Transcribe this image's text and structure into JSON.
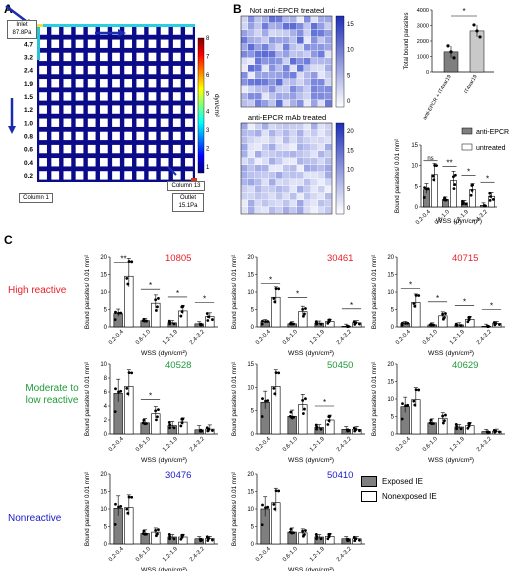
{
  "panels": {
    "a": "A",
    "b": "B",
    "c": "C"
  },
  "panel_a": {
    "inlet_label": "Inlet",
    "inlet_value": "87.8Pa",
    "outlet_label": "Outlet",
    "outlet_value": "15.1Pa",
    "column1": "Column 1",
    "column13": "Column 13",
    "row_wss": [
      "7.9",
      "4.7",
      "3.2",
      "2.4",
      "1.9",
      "1.5",
      "1.2",
      "1.0",
      "0.8",
      "0.6",
      "0.4",
      "0.2"
    ],
    "colorbar_ticks": [
      "8",
      "7",
      "6",
      "5",
      "4",
      "3",
      "2",
      "1"
    ],
    "colorbar_label": "dyn/cm²",
    "colormap": [
      "#00007f",
      "#0000ff",
      "#007fff",
      "#00ffff",
      "#7fff7f",
      "#ffff00",
      "#ff7f00",
      "#ff0000",
      "#7f0000"
    ]
  },
  "panel_b": {
    "map1_title": "Not anti-EPCR treated",
    "map1_ticks": [
      "15",
      "10",
      "5",
      "0"
    ],
    "map2_title": "anti-EPCR mAb treated",
    "map2_ticks": [
      "20",
      "15",
      "10",
      "5",
      "0"
    ],
    "map_color": "#2b3fc8"
  },
  "bar_chart": {
    "ylabel": "Total bound parasites",
    "yticks": [
      "0",
      "1000",
      "2000",
      "3000",
      "4000"
    ],
    "categories": [
      "anti-EPCR + IT4var19",
      "IT4var19"
    ],
    "values": [
      1300,
      2650
    ],
    "ylim": [
      0,
      4000
    ],
    "sig": "*",
    "colors": [
      "#7f7f7f",
      "#c9c9c9"
    ]
  },
  "epcr_chart": {
    "ylabel": "Bound parasites/ 0.01 mm²",
    "yticks": [
      "0",
      "5",
      "10",
      "15"
    ],
    "ylim": [
      0,
      15
    ],
    "xlabel": "WSS (dyn/cm²)",
    "categories": [
      "0.2-0.4",
      "0.6-1.0",
      "1.2-1.9",
      "2.4-3.2"
    ],
    "series": [
      {
        "name": "anti-EPCR",
        "values": [
          4.2,
          1.8,
          1.0,
          0.4
        ]
      },
      {
        "name": "untreated",
        "values": [
          7.8,
          6.4,
          4.2,
          2.6
        ]
      }
    ],
    "sig": [
      "ns",
      "**",
      "*",
      "*"
    ]
  },
  "legend_c": {
    "exposed": "Exposed IE",
    "nonexposed": "Nonexposed IE"
  },
  "row_labels": {
    "high": "High reactive",
    "moderate": "Moderate to\nlow reactive",
    "non": "Nonreactive"
  },
  "row_colors": {
    "high": "#e8202a",
    "moderate": "#1f9a3a",
    "non": "#1a1ac8"
  },
  "chart_data": [
    {
      "type": "bar",
      "title": "10805",
      "ylabel": "Bound parasites/ 0.01 mm²",
      "xlabel": "WSS (dyn/cm²)",
      "categories": [
        "0.2-0.4",
        "0.6-1.0",
        "1.2-1.9",
        "2.4-3.2"
      ],
      "ylim": [
        0,
        20
      ],
      "yticks": [
        "0",
        "5",
        "10",
        "15",
        "20"
      ],
      "series": [
        {
          "name": "Exposed IE",
          "values": [
            3.8,
            1.8,
            1.2,
            0.9
          ]
        },
        {
          "name": "Nonexposed IE",
          "values": [
            14.5,
            6.8,
            4.6,
            3.0
          ]
        }
      ],
      "sig": [
        "**",
        "*",
        "*",
        "*"
      ]
    },
    {
      "type": "bar",
      "title": "30461",
      "ylabel": "Bound parasites/ 0.01 mm²",
      "xlabel": "WSS (dyn/cm²)",
      "categories": [
        "0.2-0.4",
        "0.6-1.0",
        "1.2-1.9",
        "2.4-3.2"
      ],
      "ylim": [
        0,
        20
      ],
      "yticks": [
        "0",
        "5",
        "10",
        "15",
        "20"
      ],
      "series": [
        {
          "name": "Exposed IE",
          "values": [
            1.5,
            0.9,
            1.1,
            0.2
          ]
        },
        {
          "name": "Nonexposed IE",
          "values": [
            8.5,
            4.4,
            1.6,
            1.2
          ]
        }
      ],
      "sig": [
        "*",
        "*",
        "",
        "*"
      ]
    },
    {
      "type": "bar",
      "title": "40715",
      "ylabel": "Bound parasites/ 0.01 mm²",
      "xlabel": "WSS (dyn/cm²)",
      "categories": [
        "0.2-0.4",
        "0.6-1.0",
        "1.2-1.9",
        "2.4-3.2"
      ],
      "ylim": [
        0,
        20
      ],
      "yticks": [
        "0",
        "5",
        "10",
        "15",
        "20"
      ],
      "series": [
        {
          "name": "Exposed IE",
          "values": [
            1.0,
            0.6,
            0.6,
            0.2
          ]
        },
        {
          "name": "Nonexposed IE",
          "values": [
            7.0,
            3.2,
            2.2,
            1.0
          ]
        }
      ],
      "sig": [
        "*",
        "*",
        "*",
        "*"
      ]
    },
    {
      "type": "bar",
      "title": "40528",
      "ylabel": "Bound parasites/ 0.01 mm²",
      "xlabel": "WSS (dyn/cm²)",
      "categories": [
        "0.2-0.4",
        "0.6-1.0",
        "1.2-1.9",
        "2.4-3.2"
      ],
      "ylim": [
        0,
        10
      ],
      "yticks": [
        "0",
        "2",
        "4",
        "6",
        "8",
        "10"
      ],
      "series": [
        {
          "name": "Exposed IE",
          "values": [
            5.8,
            1.6,
            1.2,
            0.6
          ]
        },
        {
          "name": "Nonexposed IE",
          "values": [
            6.8,
            2.9,
            1.7,
            0.7
          ]
        }
      ],
      "sig": [
        "",
        "*",
        "",
        ""
      ]
    },
    {
      "type": "bar",
      "title": "50450",
      "ylabel": "Bound parasites/ 0.01 mm²",
      "xlabel": "WSS (dyn/cm²)",
      "categories": [
        "0.2-0.4",
        "0.6-1.0",
        "1.2-1.9",
        "2.4-3.2"
      ],
      "ylim": [
        0,
        15
      ],
      "yticks": [
        "0",
        "5",
        "10",
        "15"
      ],
      "series": [
        {
          "name": "Exposed IE",
          "values": [
            6.8,
            3.8,
            1.4,
            1.0
          ]
        },
        {
          "name": "Nonexposed IE",
          "values": [
            10.2,
            6.3,
            3.0,
            1.0
          ]
        }
      ],
      "sig": [
        "",
        "",
        "*",
        ""
      ]
    },
    {
      "type": "bar",
      "title": "40629",
      "ylabel": "Bound parasites/ 0.01 mm²",
      "xlabel": "WSS (dyn/cm²)",
      "categories": [
        "0.2-0.4",
        "0.6-1.0",
        "1.2-1.9",
        "2.4-3.2"
      ],
      "ylim": [
        0,
        20
      ],
      "yticks": [
        "0",
        "5",
        "10",
        "15",
        "20"
      ],
      "series": [
        {
          "name": "Exposed IE",
          "values": [
            7.8,
            3.2,
            2.0,
            0.7
          ]
        },
        {
          "name": "Nonexposed IE",
          "values": [
            9.8,
            4.5,
            2.4,
            0.8
          ]
        }
      ],
      "sig": [
        "",
        "",
        "",
        ""
      ]
    },
    {
      "type": "bar",
      "title": "30476",
      "ylabel": "Bound parasites/ 0.01 mm²",
      "xlabel": "WSS (dyn/cm²)",
      "categories": [
        "0.2-0.4",
        "0.6-1.0",
        "1.2-1.9",
        "2.4-3.2"
      ],
      "ylim": [
        0,
        20
      ],
      "yticks": [
        "0",
        "5",
        "10",
        "15",
        "20"
      ],
      "series": [
        {
          "name": "Exposed IE",
          "values": [
            10.2,
            3.0,
            2.0,
            1.5
          ]
        },
        {
          "name": "Nonexposed IE",
          "values": [
            10.4,
            3.4,
            2.0,
            1.6
          ]
        }
      ],
      "sig": [
        "",
        "",
        "",
        ""
      ]
    },
    {
      "type": "bar",
      "title": "50410",
      "ylabel": "Bound parasites/ 0.01 mm²",
      "xlabel": "WSS (dyn/cm²)",
      "categories": [
        "0.2-0.4",
        "0.6-1.0",
        "1.2-1.9",
        "2.4-3.2"
      ],
      "ylim": [
        0,
        20
      ],
      "yticks": [
        "0",
        "5",
        "10",
        "15",
        "20"
      ],
      "series": [
        {
          "name": "Exposed IE",
          "values": [
            10.0,
            3.4,
            2.0,
            1.5
          ]
        },
        {
          "name": "Nonexposed IE",
          "values": [
            11.8,
            3.2,
            2.2,
            1.5
          ]
        }
      ],
      "sig": [
        "",
        "",
        "",
        ""
      ]
    }
  ]
}
